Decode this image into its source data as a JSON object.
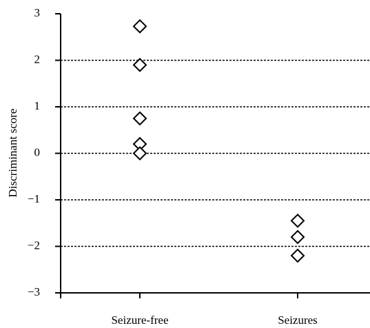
{
  "chart_data": {
    "type": "strip",
    "ylabel": "Discriminant score",
    "categories": [
      "Seizure-free",
      "Seizures"
    ],
    "values": [
      [
        2.73,
        1.9,
        0.75,
        0.2,
        0.0
      ],
      [
        -1.45,
        -1.8,
        -2.2
      ]
    ],
    "color": "#000000",
    "ylim": [
      -3,
      3
    ],
    "yticks": [
      {
        "value": -3,
        "label": "−3"
      },
      {
        "value": -2,
        "label": "−2"
      },
      {
        "value": -1,
        "label": "−1"
      },
      0,
      1,
      2,
      3
    ],
    "grid": true
  }
}
